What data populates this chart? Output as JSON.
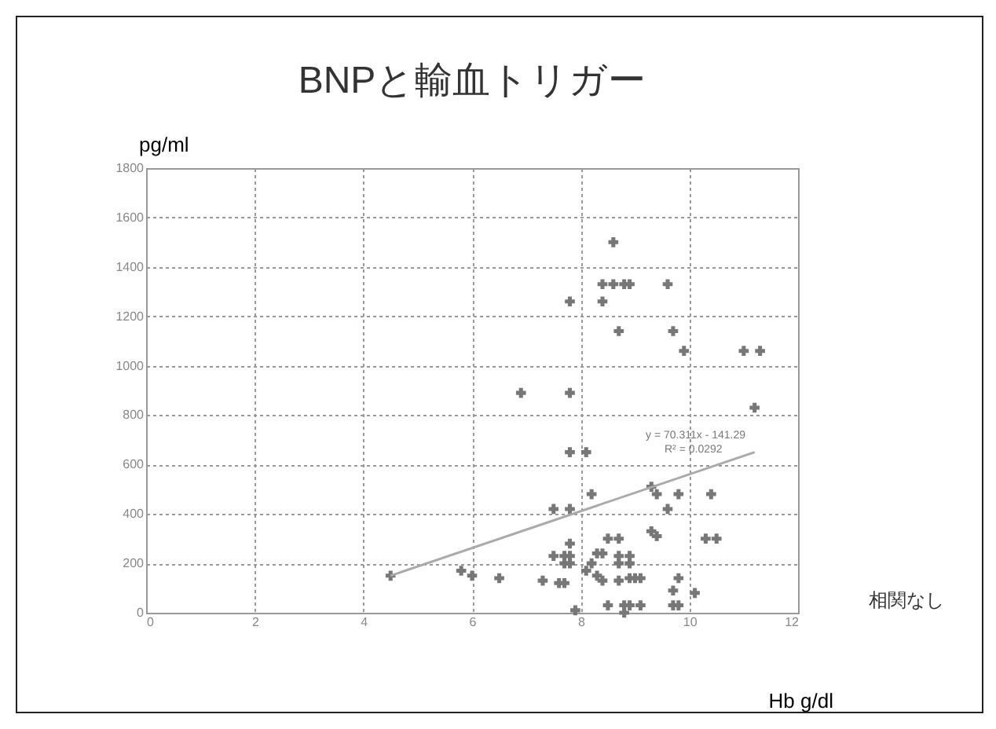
{
  "chart_data": {
    "type": "scatter",
    "title": "BNPと輸血トリガー",
    "xlabel": "Hb  g/dl",
    "ylabel": "pg/ml",
    "xlim": [
      0,
      12
    ],
    "xticks": [
      0,
      2,
      4,
      6,
      8,
      10,
      12
    ],
    "ylim": [
      0,
      1800
    ],
    "yticks": [
      0,
      200,
      400,
      600,
      800,
      1000,
      1200,
      1400,
      1600,
      1800
    ],
    "grid": true,
    "marker": "cross",
    "annotations": [
      "相関なし",
      "y = 70.311x - 141.29",
      "R² = 0.0292"
    ],
    "series": [
      {
        "color": "#777777",
        "x": [
          4.5,
          7.8,
          6.9,
          7.8,
          7.8,
          8.1,
          8.2,
          7.5,
          7.8,
          5.8,
          6.0,
          6.5,
          7.3,
          7.6,
          7.7,
          7.8,
          7.5,
          7.7,
          7.8,
          7.7,
          7.8,
          7.9,
          8.1,
          8.2,
          8.3,
          8.6,
          8.4,
          8.6,
          8.8,
          8.9,
          9.6,
          8.4,
          8.7,
          9.7,
          9.9,
          11.0,
          11.3,
          11.2,
          9.3,
          9.4,
          9.8,
          10.4,
          9.6,
          8.5,
          8.7,
          9.3,
          9.4,
          10.3,
          10.5,
          8.4,
          8.7,
          8.9,
          8.7,
          8.9,
          8.3,
          8.4,
          8.7,
          8.9,
          9.0,
          9.1,
          9.8,
          9.7,
          10.1,
          8.5,
          8.8,
          8.9,
          9.1,
          9.7,
          9.8,
          8.8
        ],
        "values": [
          150,
          1260,
          890,
          890,
          650,
          650,
          480,
          420,
          420,
          170,
          150,
          140,
          130,
          120,
          120,
          280,
          230,
          230,
          230,
          200,
          200,
          10,
          170,
          200,
          240,
          1500,
          1330,
          1330,
          1330,
          1330,
          1330,
          1260,
          1140,
          1140,
          1060,
          1060,
          1060,
          830,
          510,
          480,
          480,
          480,
          420,
          300,
          300,
          330,
          310,
          300,
          300,
          240,
          230,
          230,
          200,
          200,
          150,
          130,
          130,
          140,
          140,
          140,
          140,
          90,
          80,
          30,
          30,
          30,
          30,
          30,
          30,
          0
        ]
      },
      {
        "type": "line",
        "marker": "none",
        "color": "#aaaaaa",
        "x": [
          4.5,
          11.2
        ],
        "values": [
          150,
          650
        ]
      }
    ]
  }
}
